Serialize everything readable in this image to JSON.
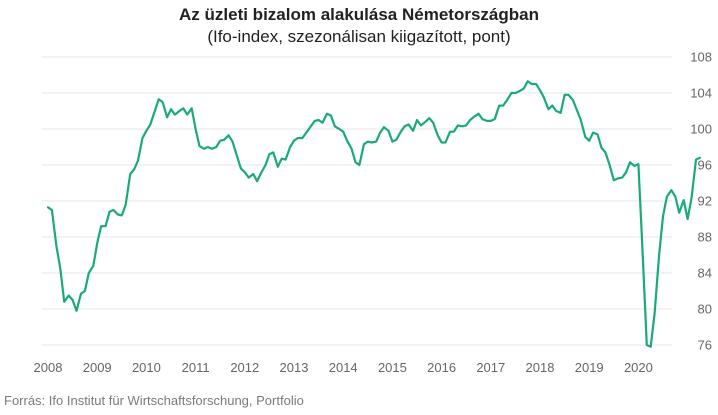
{
  "chart_data": {
    "type": "line",
    "title": "Az üzleti bizalom alakulása Németországban",
    "subtitle": "(Ifo-index, szezonálisan kiigazított, pont)",
    "xlabel": "",
    "ylabel": "",
    "source": "Forrás: Ifo Institut für Wirtschaftsforschung, Portfolio",
    "line_color": "#1aaa7a",
    "grid": true,
    "xlim": [
      2008.0,
      2020.83
    ],
    "ylim": [
      76,
      108
    ],
    "y_ticks": [
      76,
      80,
      84,
      88,
      92,
      96,
      100,
      104,
      108
    ],
    "x_ticks": [
      "2008",
      "2009",
      "2010",
      "2011",
      "2012",
      "2013",
      "2014",
      "2015",
      "2016",
      "2017",
      "2018",
      "2019",
      "2020"
    ],
    "series": [
      {
        "name": "",
        "points": [
          [
            2008.0,
            91.3
          ],
          [
            2008.08,
            91.0
          ],
          [
            2008.17,
            87.0
          ],
          [
            2008.25,
            84.5
          ],
          [
            2008.33,
            80.8
          ],
          [
            2008.42,
            81.5
          ],
          [
            2008.5,
            81.0
          ],
          [
            2008.58,
            79.8
          ],
          [
            2008.67,
            81.7
          ],
          [
            2008.75,
            82.0
          ],
          [
            2008.83,
            84.0
          ],
          [
            2008.92,
            84.8
          ],
          [
            2009.0,
            87.3
          ],
          [
            2009.08,
            89.2
          ],
          [
            2009.17,
            89.2
          ],
          [
            2009.25,
            90.8
          ],
          [
            2009.33,
            91.0
          ],
          [
            2009.42,
            90.5
          ],
          [
            2009.5,
            90.4
          ],
          [
            2009.58,
            91.6
          ],
          [
            2009.67,
            95.0
          ],
          [
            2009.75,
            95.5
          ],
          [
            2009.83,
            96.5
          ],
          [
            2009.92,
            99.0
          ],
          [
            2010.0,
            99.8
          ],
          [
            2010.08,
            100.5
          ],
          [
            2010.17,
            102.0
          ],
          [
            2010.25,
            103.3
          ],
          [
            2010.33,
            103.0
          ],
          [
            2010.42,
            101.3
          ],
          [
            2010.5,
            102.2
          ],
          [
            2010.58,
            101.6
          ],
          [
            2010.67,
            102.0
          ],
          [
            2010.75,
            102.3
          ],
          [
            2010.83,
            101.6
          ],
          [
            2010.92,
            102.3
          ],
          [
            2011.0,
            100.0
          ],
          [
            2011.08,
            98.1
          ],
          [
            2011.17,
            97.8
          ],
          [
            2011.25,
            98.0
          ],
          [
            2011.33,
            97.8
          ],
          [
            2011.42,
            98.0
          ],
          [
            2011.5,
            98.7
          ],
          [
            2011.58,
            98.8
          ],
          [
            2011.67,
            99.3
          ],
          [
            2011.75,
            98.6
          ],
          [
            2011.83,
            97.2
          ],
          [
            2011.92,
            95.6
          ],
          [
            2012.0,
            95.2
          ],
          [
            2012.08,
            94.6
          ],
          [
            2012.17,
            95.0
          ],
          [
            2012.25,
            94.2
          ],
          [
            2012.33,
            95.1
          ],
          [
            2012.42,
            96.0
          ],
          [
            2012.5,
            97.2
          ],
          [
            2012.58,
            97.4
          ],
          [
            2012.67,
            95.8
          ],
          [
            2012.75,
            96.7
          ],
          [
            2012.83,
            96.6
          ],
          [
            2012.92,
            98.0
          ],
          [
            2013.0,
            98.7
          ],
          [
            2013.08,
            99.0
          ],
          [
            2013.17,
            99.0
          ],
          [
            2013.25,
            99.6
          ],
          [
            2013.33,
            100.2
          ],
          [
            2013.42,
            100.9
          ],
          [
            2013.5,
            101.0
          ],
          [
            2013.58,
            100.7
          ],
          [
            2013.67,
            101.7
          ],
          [
            2013.75,
            101.5
          ],
          [
            2013.83,
            100.3
          ],
          [
            2013.92,
            100.0
          ],
          [
            2014.0,
            99.7
          ],
          [
            2014.08,
            98.7
          ],
          [
            2014.17,
            97.8
          ],
          [
            2014.25,
            96.3
          ],
          [
            2014.33,
            96.0
          ],
          [
            2014.42,
            98.3
          ],
          [
            2014.5,
            98.6
          ],
          [
            2014.58,
            98.5
          ],
          [
            2014.67,
            98.6
          ],
          [
            2014.75,
            99.6
          ],
          [
            2014.83,
            100.2
          ],
          [
            2014.92,
            99.8
          ],
          [
            2015.0,
            98.6
          ],
          [
            2015.08,
            98.8
          ],
          [
            2015.17,
            99.7
          ],
          [
            2015.25,
            100.3
          ],
          [
            2015.33,
            100.5
          ],
          [
            2015.42,
            99.8
          ],
          [
            2015.5,
            101.0
          ],
          [
            2015.58,
            100.4
          ],
          [
            2015.67,
            100.8
          ],
          [
            2015.75,
            101.2
          ],
          [
            2015.83,
            100.7
          ],
          [
            2015.92,
            99.3
          ],
          [
            2016.0,
            98.5
          ],
          [
            2016.08,
            98.5
          ],
          [
            2016.17,
            99.7
          ],
          [
            2016.25,
            99.7
          ],
          [
            2016.33,
            100.4
          ],
          [
            2016.42,
            100.3
          ],
          [
            2016.5,
            100.4
          ],
          [
            2016.58,
            101.0
          ],
          [
            2016.67,
            101.4
          ],
          [
            2016.75,
            101.7
          ],
          [
            2016.83,
            101.1
          ],
          [
            2016.92,
            100.9
          ],
          [
            2017.0,
            100.9
          ],
          [
            2017.08,
            101.1
          ],
          [
            2017.17,
            102.6
          ],
          [
            2017.25,
            102.6
          ],
          [
            2017.33,
            103.2
          ],
          [
            2017.42,
            104.0
          ],
          [
            2017.5,
            104.0
          ],
          [
            2017.58,
            104.2
          ],
          [
            2017.67,
            104.5
          ],
          [
            2017.75,
            105.3
          ],
          [
            2017.83,
            105.0
          ],
          [
            2017.92,
            105.0
          ],
          [
            2018.0,
            104.3
          ],
          [
            2018.08,
            103.5
          ],
          [
            2018.17,
            102.2
          ],
          [
            2018.25,
            102.6
          ],
          [
            2018.33,
            102.0
          ],
          [
            2018.42,
            101.8
          ],
          [
            2018.5,
            103.8
          ],
          [
            2018.58,
            103.8
          ],
          [
            2018.67,
            103.2
          ],
          [
            2018.75,
            102.1
          ],
          [
            2018.83,
            101.0
          ],
          [
            2018.92,
            99.1
          ],
          [
            2019.0,
            98.7
          ],
          [
            2019.08,
            99.6
          ],
          [
            2019.17,
            99.4
          ],
          [
            2019.25,
            97.9
          ],
          [
            2019.33,
            97.4
          ],
          [
            2019.42,
            95.9
          ],
          [
            2019.5,
            94.3
          ],
          [
            2019.58,
            94.5
          ],
          [
            2019.67,
            94.6
          ],
          [
            2019.75,
            95.2
          ],
          [
            2019.83,
            96.3
          ],
          [
            2019.92,
            95.9
          ],
          [
            2020.0,
            96.1
          ],
          [
            2020.08,
            87.0
          ],
          [
            2020.17,
            76.0
          ],
          [
            2020.25,
            75.8
          ],
          [
            2020.33,
            79.5
          ],
          [
            2020.42,
            86.0
          ],
          [
            2020.5,
            90.3
          ],
          [
            2020.58,
            92.5
          ],
          [
            2020.67,
            93.2
          ],
          [
            2020.75,
            92.5
          ],
          [
            2020.83,
            90.7
          ],
          [
            2020.92,
            92.1
          ],
          [
            2021.0,
            90.0
          ],
          [
            2021.08,
            92.3
          ],
          [
            2021.17,
            96.6
          ],
          [
            2021.25,
            96.8
          ]
        ]
      }
    ]
  }
}
